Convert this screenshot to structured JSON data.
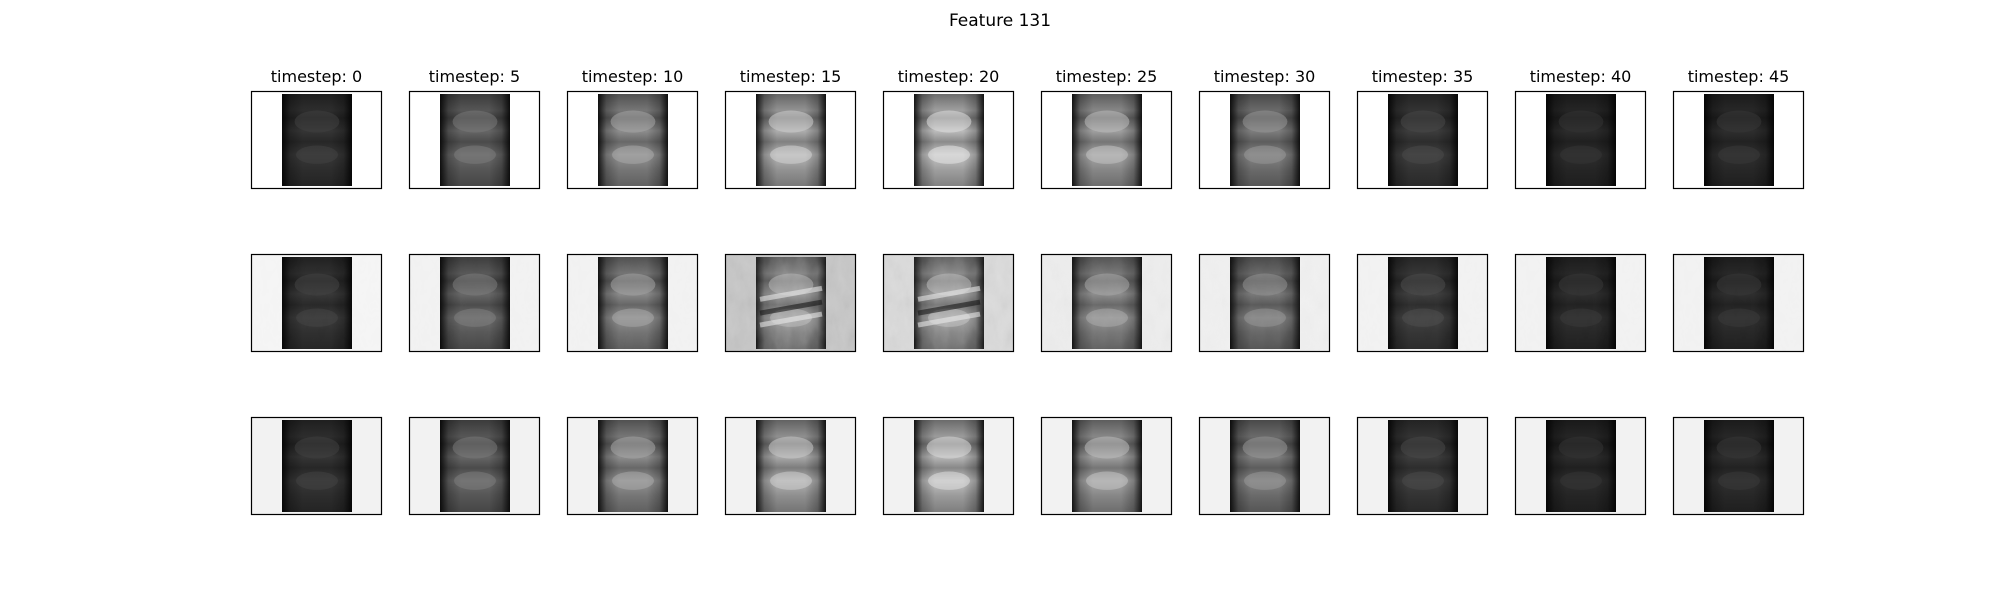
{
  "chart_data": {
    "type": "heatmap",
    "title": "Feature 131",
    "colormap": "gray",
    "column_titles": [
      "timestep: 0",
      "timestep: 5",
      "timestep: 10",
      "timestep: 15",
      "timestep: 20",
      "timestep: 25",
      "timestep: 30",
      "timestep: 35",
      "timestep: 40",
      "timestep: 45"
    ],
    "rows": 3,
    "timesteps": [
      0,
      5,
      10,
      15,
      20,
      25,
      30,
      35,
      40,
      45
    ],
    "brightness": [
      [
        0.22,
        0.42,
        0.58,
        0.72,
        0.78,
        0.66,
        0.52,
        0.25,
        0.18,
        0.19
      ],
      [
        0.23,
        0.43,
        0.57,
        0.64,
        0.66,
        0.58,
        0.5,
        0.26,
        0.19,
        0.19
      ],
      [
        0.22,
        0.42,
        0.58,
        0.7,
        0.76,
        0.66,
        0.52,
        0.25,
        0.18,
        0.19
      ]
    ],
    "side_shade": [
      [
        1.0,
        1.0,
        1.0,
        1.0,
        1.0,
        1.0,
        1.0,
        1.0,
        1.0,
        1.0
      ],
      [
        0.96,
        0.95,
        0.95,
        0.78,
        0.86,
        0.93,
        0.94,
        0.95,
        0.95,
        0.95
      ],
      [
        0.95,
        0.95,
        0.95,
        0.95,
        0.95,
        0.95,
        0.95,
        0.95,
        0.95,
        0.95
      ]
    ],
    "texture_noise": [
      [
        0,
        0,
        0,
        0,
        0,
        0,
        0,
        0,
        0,
        0
      ],
      [
        0.02,
        0.02,
        0.02,
        0.35,
        0.3,
        0.12,
        0.1,
        0.02,
        0.02,
        0.02
      ],
      [
        0,
        0,
        0,
        0,
        0,
        0,
        0,
        0,
        0,
        0
      ]
    ]
  }
}
